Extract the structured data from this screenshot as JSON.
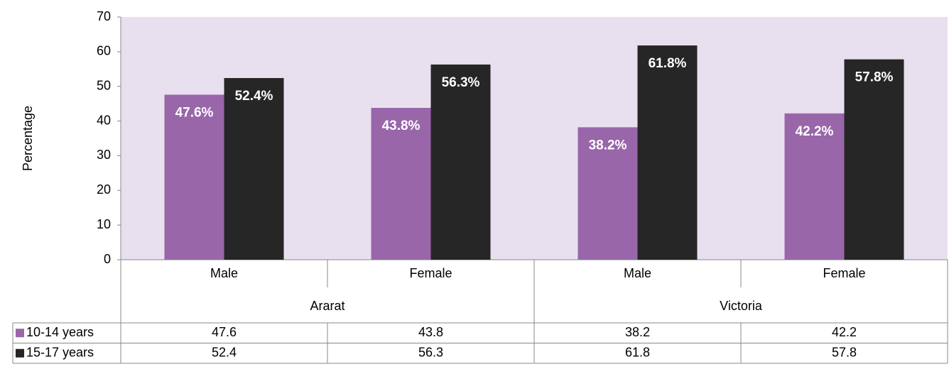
{
  "chart_data": {
    "type": "bar",
    "y_axis_label": "Percentage",
    "categories": [
      "Male",
      "Female",
      "Male",
      "Female"
    ],
    "groups": [
      "Ararat",
      "Victoria"
    ],
    "series": [
      {
        "name": "10-14 years",
        "color": "#9966aa",
        "values": [
          47.6,
          43.8,
          38.2,
          42.2
        ],
        "value_labels": [
          "47.6%",
          "43.8%",
          "38.2%",
          "42.2%"
        ]
      },
      {
        "name": "15-17 years",
        "color": "#262626",
        "values": [
          52.4,
          56.3,
          61.8,
          57.8
        ],
        "value_labels": [
          "52.4%",
          "56.3%",
          "61.8%",
          "57.8%"
        ]
      }
    ],
    "ylim": [
      0,
      70
    ],
    "yticks": [
      0,
      10,
      20,
      30,
      40,
      50,
      60,
      70
    ],
    "plot_background": "#e8e0ef",
    "data_table": true
  }
}
